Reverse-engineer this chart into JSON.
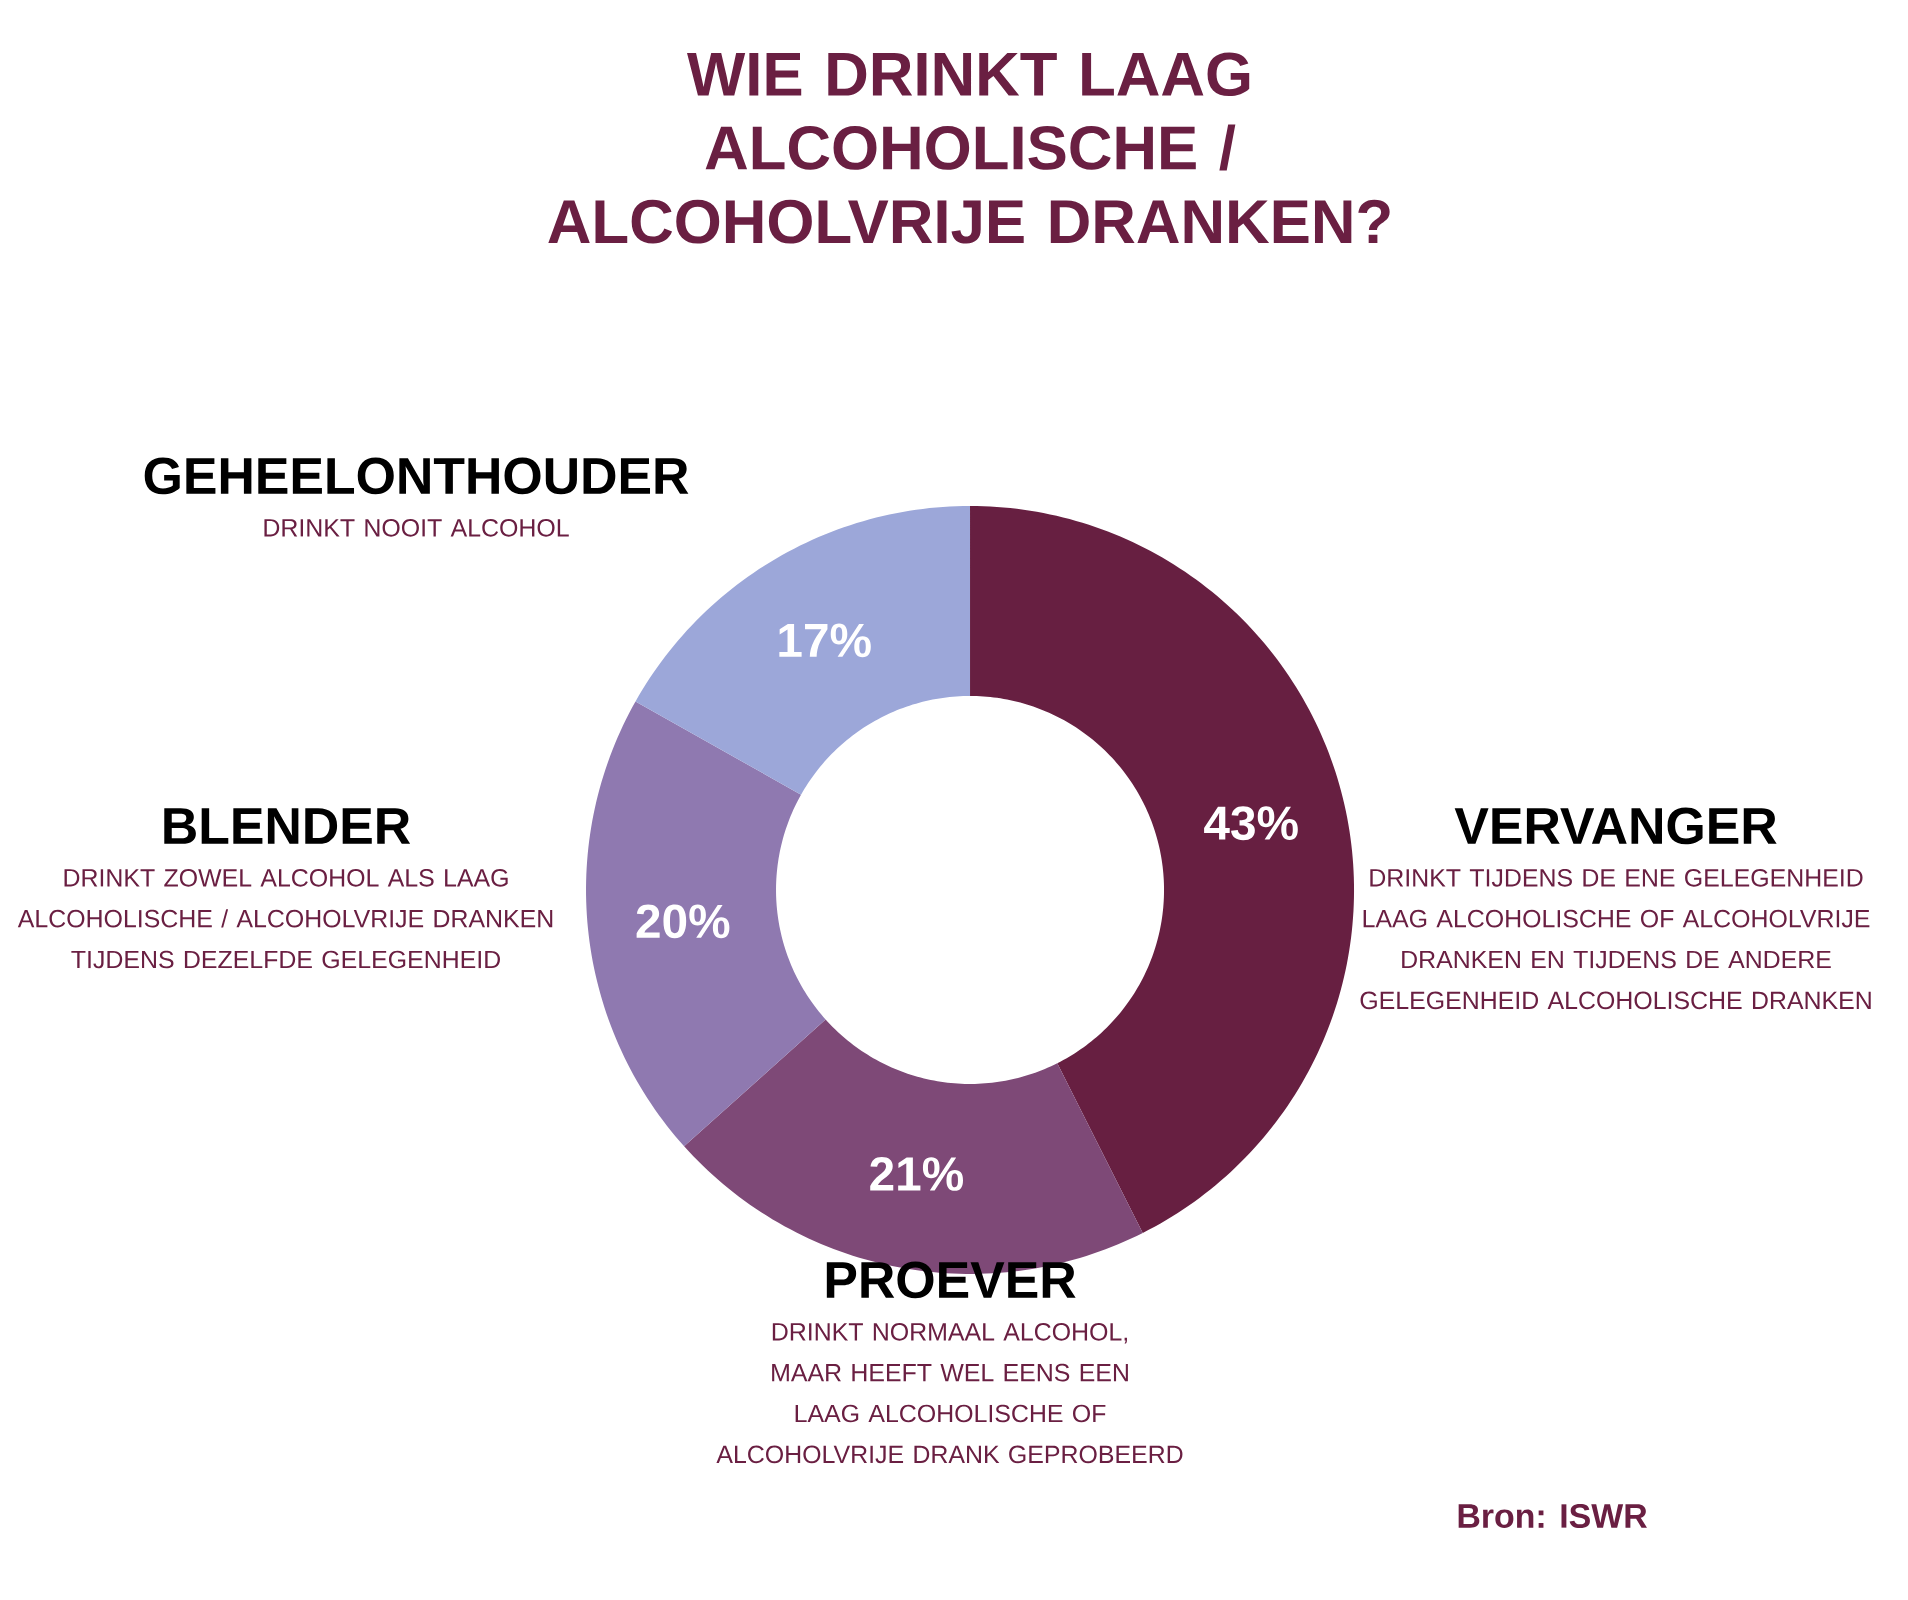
{
  "chart_data": {
    "type": "donut",
    "title": "WIE DRINKT LAAG ALCOHOLISCHE / ALCOHOLVRIJE DRANKEN?",
    "categories": [
      "VERVANGER",
      "PROEVER",
      "BLENDER",
      "GEHEELONTHOUDER"
    ],
    "values": [
      43,
      21,
      20,
      17
    ],
    "colors": [
      "#671f41",
      "#7e4977",
      "#8f79b0",
      "#9ca7d9"
    ],
    "value_labels": [
      "43%",
      "21%",
      "20%",
      "17%"
    ],
    "annotations": [
      "DRINKT TIJDENS DE ENE GELEGENHEID LAAG ALCOHOLISCHE OF ALCOHOLVRIJE DRANKEN EN TIJDENS DE ANDERE GELEGENHEID ALCOHOLISCHE DRANKEN",
      "DRINKT NORMAAL ALCOHOL, MAAR HEEFT WEL EENS EEN LAAG ALCOHOLISCHE OF ALCOHOLVRIJE DRANK GEPROBEERD",
      "DRINKT ZOWEL ALCOHOL ALS LAAG ALCOHOLISCHE / ALCOHOLVRIJE DRANKEN TIJDENS DEZELFDE GELEGENHEID",
      "DRINKT NOOIT ALCOHOL",
      "Bron: ISWR"
    ]
  }
}
